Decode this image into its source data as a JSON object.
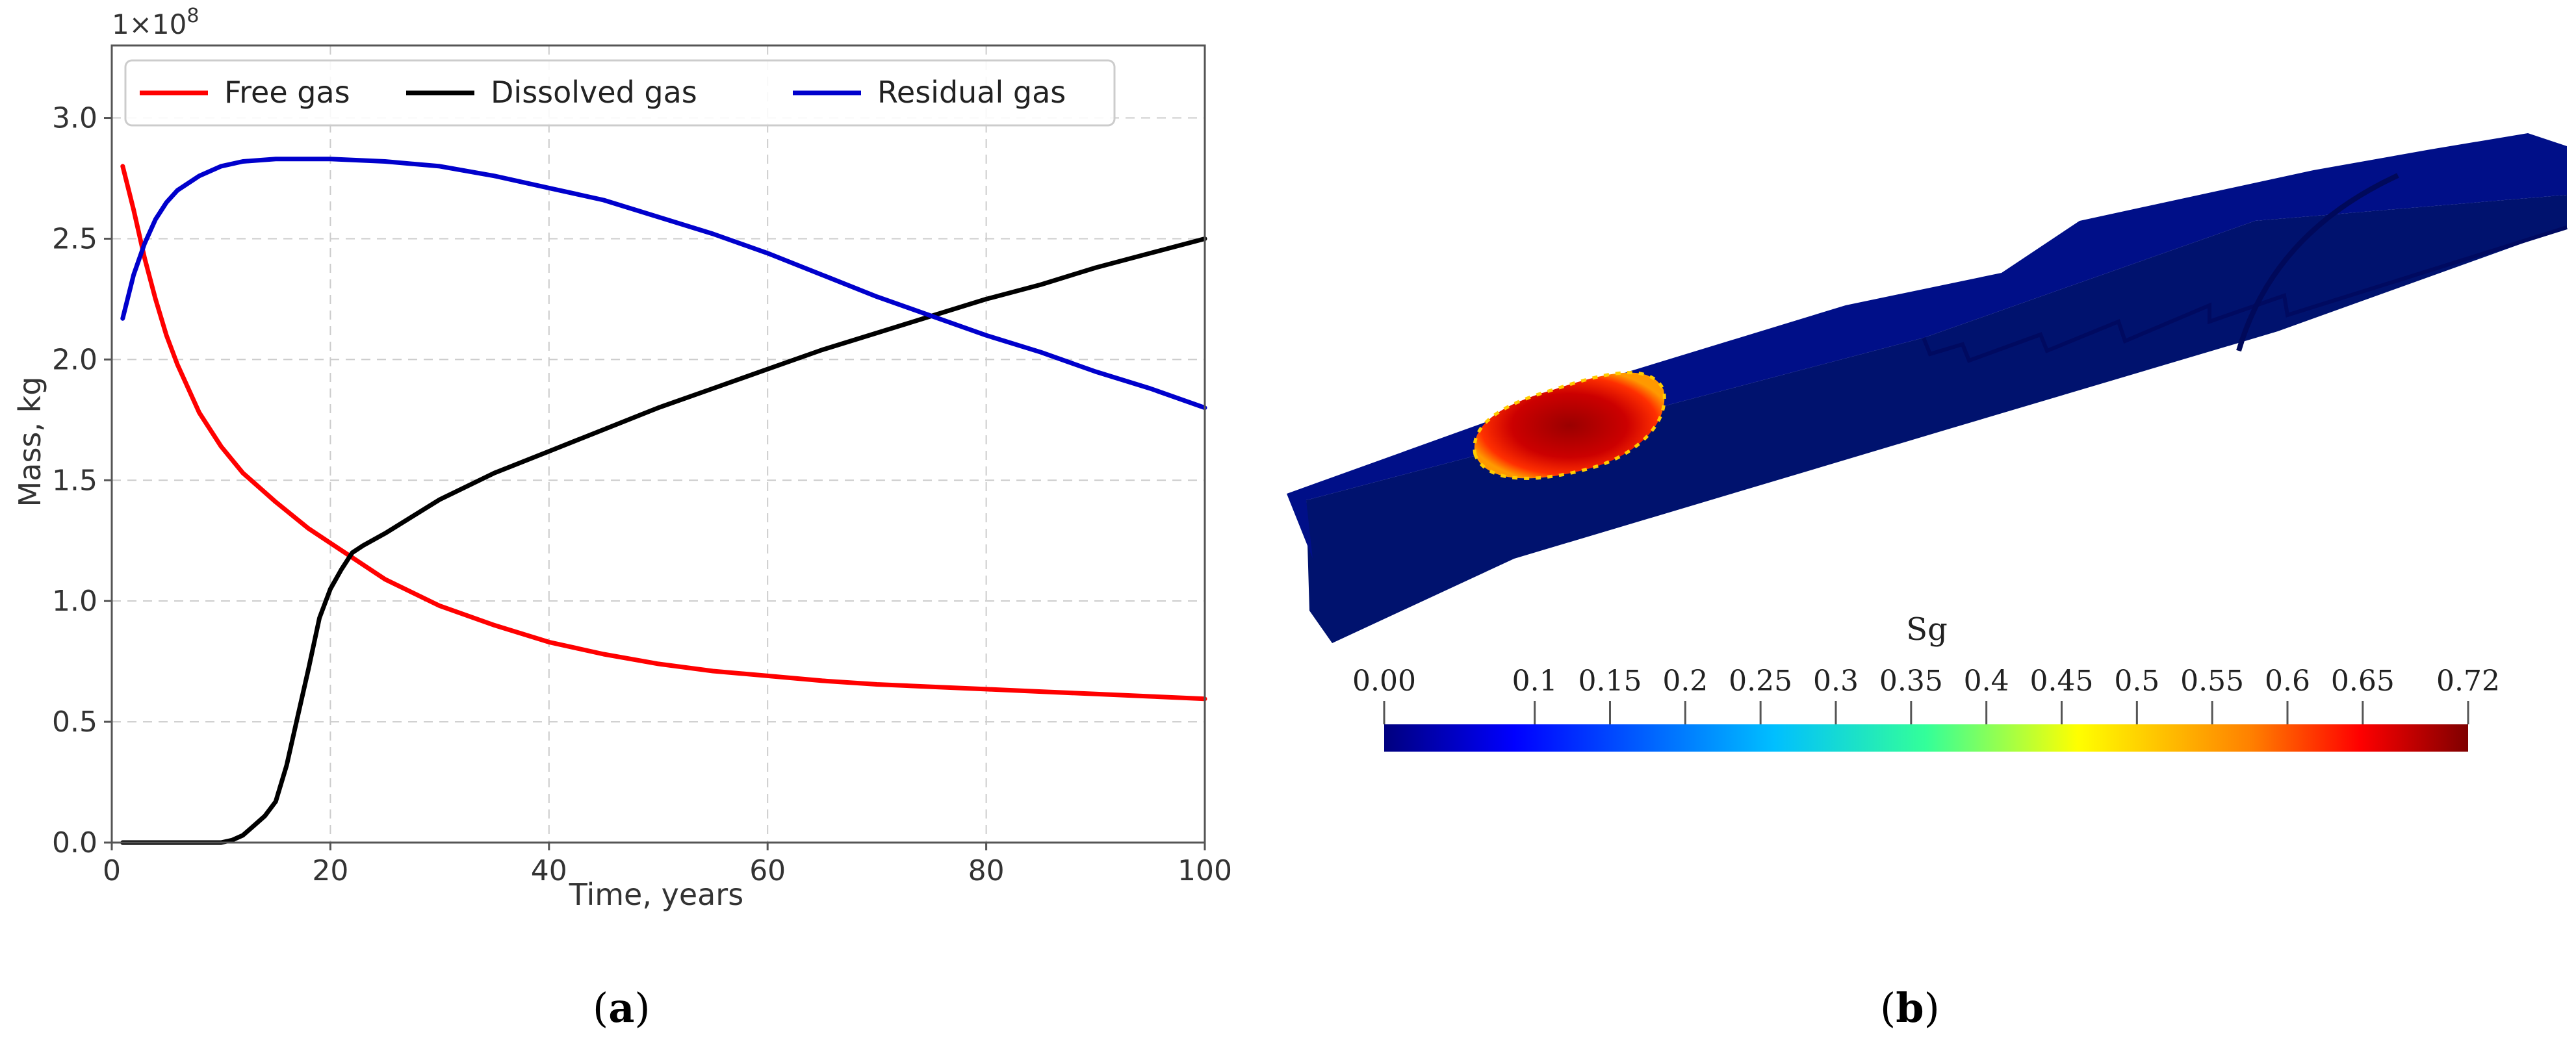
{
  "chart_data": [
    {
      "type": "line",
      "multiplier_label": "1×10",
      "multiplier_exp": "8",
      "xlabel": "Time, years",
      "ylabel": "Mass, kg",
      "xlim": [
        0,
        100
      ],
      "ylim": [
        0,
        3.3
      ],
      "xticks": [
        "0",
        "20",
        "40",
        "60",
        "80",
        "100"
      ],
      "yticks": [
        "0.0",
        "0.5",
        "1.0",
        "1.5",
        "2.0",
        "2.5",
        "3.0"
      ],
      "grid": true,
      "legend_position": "top",
      "series": [
        {
          "name": "Free gas",
          "color": "#ff0000",
          "x": [
            1,
            2,
            3,
            4,
            5,
            6,
            8,
            10,
            12,
            15,
            18,
            20,
            25,
            30,
            35,
            40,
            45,
            50,
            55,
            60,
            65,
            70,
            75,
            80,
            85,
            90,
            95,
            100
          ],
          "y": [
            2.8,
            2.62,
            2.42,
            2.25,
            2.1,
            1.98,
            1.78,
            1.64,
            1.53,
            1.41,
            1.3,
            1.24,
            1.09,
            0.98,
            0.9,
            0.83,
            0.78,
            0.74,
            0.71,
            0.69,
            0.67,
            0.655,
            0.645,
            0.635,
            0.625,
            0.615,
            0.605,
            0.595
          ]
        },
        {
          "name": "Dissolved gas",
          "color": "#000000",
          "x": [
            1,
            5,
            10,
            11,
            12,
            13,
            14,
            15,
            16,
            17,
            18,
            19,
            20,
            21,
            22,
            23,
            25,
            30,
            35,
            40,
            45,
            50,
            55,
            60,
            65,
            70,
            75,
            80,
            85,
            90,
            95,
            100
          ],
          "y": [
            0,
            0,
            0,
            0.01,
            0.03,
            0.07,
            0.11,
            0.17,
            0.32,
            0.52,
            0.72,
            0.93,
            1.05,
            1.13,
            1.2,
            1.23,
            1.28,
            1.42,
            1.53,
            1.62,
            1.71,
            1.8,
            1.88,
            1.96,
            2.04,
            2.11,
            2.18,
            2.25,
            2.31,
            2.38,
            2.44,
            2.5
          ]
        },
        {
          "name": "Residual gas",
          "color": "#0000cc",
          "x": [
            1,
            2,
            3,
            4,
            5,
            6,
            8,
            10,
            12,
            15,
            18,
            20,
            25,
            30,
            35,
            40,
            45,
            50,
            55,
            60,
            65,
            70,
            75,
            80,
            85,
            90,
            95,
            100
          ],
          "y": [
            2.17,
            2.35,
            2.48,
            2.58,
            2.65,
            2.7,
            2.76,
            2.8,
            2.82,
            2.83,
            2.83,
            2.83,
            2.82,
            2.8,
            2.76,
            2.71,
            2.66,
            2.59,
            2.52,
            2.44,
            2.35,
            2.26,
            2.18,
            2.1,
            2.03,
            1.95,
            1.88,
            1.8
          ]
        }
      ]
    }
  ],
  "colorbar": {
    "title": "Sg",
    "tick_labels": [
      "0.00",
      "0.1",
      "0.15",
      "0.2",
      "0.25",
      "0.3",
      "0.35",
      "0.4",
      "0.45",
      "0.5",
      "0.55",
      "0.6",
      "0.65",
      "0.72"
    ],
    "tick_values": [
      0.0,
      0.1,
      0.15,
      0.2,
      0.25,
      0.3,
      0.35,
      0.4,
      0.45,
      0.5,
      0.55,
      0.6,
      0.65,
      0.72
    ],
    "range": [
      0.0,
      0.72
    ],
    "colormap": "jet"
  },
  "captions": {
    "a": "a",
    "b": "b"
  }
}
